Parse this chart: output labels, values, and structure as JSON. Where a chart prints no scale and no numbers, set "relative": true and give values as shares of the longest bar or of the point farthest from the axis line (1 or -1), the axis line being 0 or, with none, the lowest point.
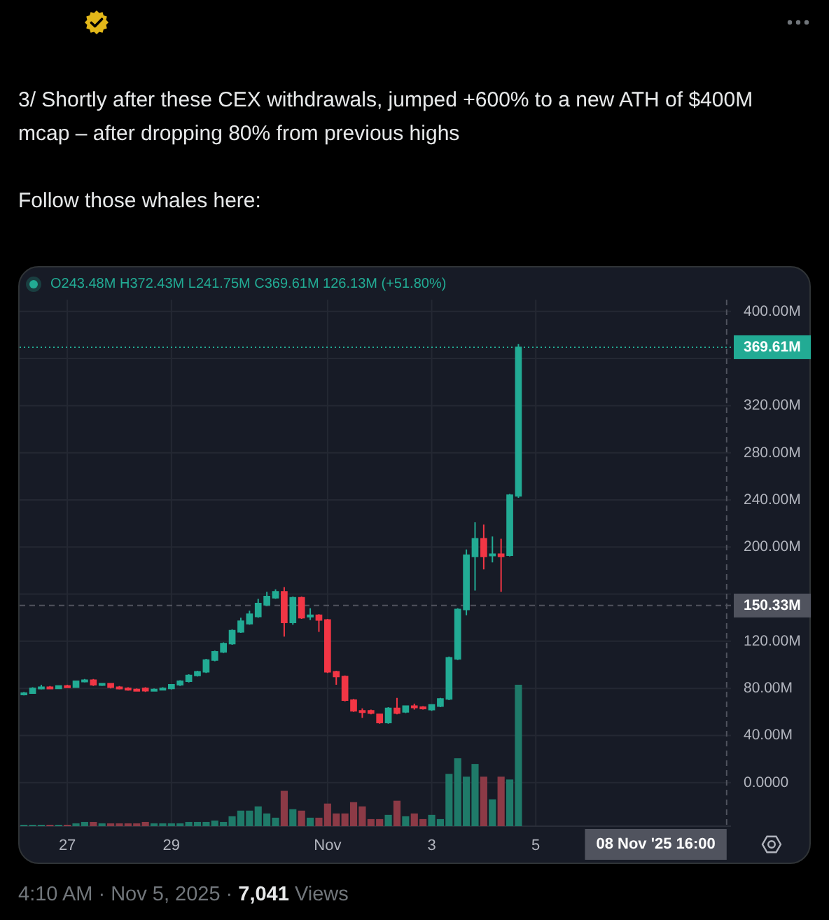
{
  "chart_data": [
    {
      "type": "candlestick",
      "title": "3/ Shortly after these CEX withdrawals, jumped +600% to a new ATH of $400M mcap – after dropping 80% from previous highs",
      "subtitle": "Follow those whales here:",
      "annotations": [
        "O243.48M H372.43M L241.75M C369.61M 126.13M (+51.80%)",
        "4:10 AM · Nov 5, 2025 ·",
        "7,041",
        "Views"
      ],
      "x": [
        "2025-10-26T04:00",
        "2025-10-26T08:00",
        "2025-10-26T12:00",
        "2025-10-26T16:00",
        "2025-10-26T20:00",
        "2025-10-27T00:00",
        "2025-10-27T04:00",
        "2025-10-27T08:00",
        "2025-10-27T12:00",
        "2025-10-27T16:00",
        "2025-10-27T20:00",
        "2025-10-28T00:00",
        "2025-10-28T04:00",
        "2025-10-28T08:00",
        "2025-10-28T12:00",
        "2025-10-28T16:00",
        "2025-10-28T20:00",
        "2025-10-29T00:00",
        "2025-10-29T04:00",
        "2025-10-29T08:00",
        "2025-10-29T12:00",
        "2025-10-29T16:00",
        "2025-10-29T20:00",
        "2025-10-30T00:00",
        "2025-10-30T04:00",
        "2025-10-30T08:00",
        "2025-10-30T12:00",
        "2025-10-30T16:00",
        "2025-10-30T20:00",
        "2025-10-31T00:00",
        "2025-10-31T04:00",
        "2025-10-31T08:00",
        "2025-10-31T12:00",
        "2025-10-31T16:00",
        "2025-10-31T20:00",
        "2025-11-01T00:00",
        "2025-11-01T04:00",
        "2025-11-01T08:00",
        "2025-11-01T12:00",
        "2025-11-01T16:00",
        "2025-11-01T20:00",
        "2025-11-02T00:00",
        "2025-11-02T04:00",
        "2025-11-02T08:00",
        "2025-11-02T12:00",
        "2025-11-02T16:00",
        "2025-11-02T20:00",
        "2025-11-03T00:00",
        "2025-11-03T04:00",
        "2025-11-03T08:00",
        "2025-11-03T12:00",
        "2025-11-03T16:00",
        "2025-11-03T20:00",
        "2025-11-04T00:00",
        "2025-11-04T04:00",
        "2025-11-04T08:00",
        "2025-11-04T12:00",
        "2025-11-04T16:00"
      ],
      "ohlc": [
        [
          75,
          77,
          74,
          76
        ],
        [
          76,
          81,
          76,
          80
        ],
        [
          80,
          83,
          79,
          81
        ],
        [
          81,
          82,
          80,
          80
        ],
        [
          80,
          82,
          80,
          82
        ],
        [
          82,
          83,
          81,
          81
        ],
        [
          81,
          86,
          81,
          86
        ],
        [
          86,
          88,
          85,
          87
        ],
        [
          87,
          88,
          82,
          83
        ],
        [
          83,
          84,
          82,
          84
        ],
        [
          84,
          84,
          80,
          81
        ],
        [
          81,
          82,
          79,
          80
        ],
        [
          80,
          81,
          78,
          79
        ],
        [
          79,
          80,
          78,
          78
        ],
        [
          80,
          81,
          77,
          78
        ],
        [
          78,
          80,
          78,
          79
        ],
        [
          79,
          81,
          79,
          80
        ],
        [
          80,
          83,
          79,
          83
        ],
        [
          83,
          87,
          82,
          86
        ],
        [
          86,
          92,
          85,
          91
        ],
        [
          91,
          95,
          90,
          94
        ],
        [
          94,
          105,
          93,
          104
        ],
        [
          104,
          112,
          103,
          111
        ],
        [
          111,
          119,
          110,
          118
        ],
        [
          118,
          130,
          117,
          129
        ],
        [
          128,
          140,
          127,
          137
        ],
        [
          135,
          146,
          134,
          143
        ],
        [
          141,
          156,
          140,
          152
        ],
        [
          151,
          162,
          150,
          158
        ],
        [
          157,
          164,
          156,
          162
        ],
        [
          162,
          166,
          124,
          136
        ],
        [
          136,
          158,
          134,
          157
        ],
        [
          157,
          158,
          139,
          140
        ],
        [
          141,
          148,
          138,
          142
        ],
        [
          142,
          143,
          128,
          138
        ],
        [
          138,
          139,
          93,
          94
        ],
        [
          94,
          95,
          83,
          90
        ],
        [
          90,
          91,
          69,
          70
        ],
        [
          70,
          71,
          60,
          61
        ],
        [
          61,
          63,
          55,
          60
        ],
        [
          61,
          62,
          58,
          59
        ],
        [
          58,
          58,
          50,
          51
        ],
        [
          51,
          64,
          50,
          63
        ],
        [
          63,
          72,
          58,
          59
        ],
        [
          60,
          65,
          59,
          65
        ],
        [
          65,
          67,
          62,
          64
        ],
        [
          64,
          65,
          62,
          63
        ],
        [
          62,
          66,
          61,
          66
        ],
        [
          65,
          72,
          64,
          71
        ],
        [
          71,
          107,
          70,
          106
        ],
        [
          105,
          148,
          104,
          147
        ],
        [
          147,
          198,
          142,
          193
        ],
        [
          192,
          221,
          163,
          207
        ],
        [
          207,
          219,
          181,
          192
        ],
        [
          193,
          209,
          187,
          194
        ],
        [
          194,
          207,
          162,
          192
        ],
        [
          193,
          245,
          192,
          244
        ],
        [
          243.48,
          372.43,
          241.75,
          369.61
        ]
      ],
      "colors": [
        "#22ab94",
        "#22ab94",
        "#22ab94",
        "#f23645",
        "#22ab94",
        "#f23645",
        "#22ab94",
        "#22ab94",
        "#f23645",
        "#22ab94",
        "#f23645",
        "#f23645",
        "#f23645",
        "#f23645",
        "#f23645",
        "#22ab94",
        "#22ab94",
        "#22ab94",
        "#22ab94",
        "#22ab94",
        "#22ab94",
        "#22ab94",
        "#22ab94",
        "#22ab94",
        "#22ab94",
        "#22ab94",
        "#22ab94",
        "#22ab94",
        "#22ab94",
        "#22ab94",
        "#f23645",
        "#22ab94",
        "#f23645",
        "#22ab94",
        "#f23645",
        "#f23645",
        "#f23645",
        "#f23645",
        "#f23645",
        "#f23645",
        "#f23645",
        "#f23645",
        "#22ab94",
        "#f23645",
        "#22ab94",
        "#f23645",
        "#f23645",
        "#22ab94",
        "#22ab94",
        "#22ab94",
        "#22ab94",
        "#22ab94",
        "#22ab94",
        "#f23645",
        "#22ab94",
        "#f23645",
        "#22ab94",
        "#22ab94"
      ],
      "xlim": [
        "2025-10-26T02:00",
        "2025-11-08T18:00"
      ],
      "xticks": [
        {
          "value": "2025-10-27",
          "label": "27"
        },
        {
          "value": "2025-10-29",
          "label": "29"
        },
        {
          "value": "2025-11-01",
          "label": "Nov"
        },
        {
          "value": "2025-11-03",
          "label": "3"
        },
        {
          "value": "2025-11-05",
          "label": "5"
        }
      ],
      "ylim": [
        -37,
        410
      ],
      "yticks": [
        {
          "value": 0,
          "label": "0.0000"
        },
        {
          "value": 40,
          "label": "40.00M"
        },
        {
          "value": 80,
          "label": "80.00M"
        },
        {
          "value": 120,
          "label": "120.00M"
        },
        {
          "value": 160,
          "label": null
        },
        {
          "value": 200,
          "label": "200.00M"
        },
        {
          "value": 240,
          "label": "240.00M"
        },
        {
          "value": 280,
          "label": "280.00M"
        },
        {
          "value": 320,
          "label": "320.00M"
        },
        {
          "value": 360,
          "label": null
        },
        {
          "value": 400,
          "label": "400.00M"
        }
      ],
      "grid": true,
      "ref_lines": [
        {
          "axis": "y",
          "value": 369.61,
          "label": "369.61M",
          "color": "#22ab94",
          "line_style": "dotted"
        },
        {
          "axis": "y",
          "value": 150.33,
          "label": "150.33M",
          "color": "#50535e",
          "line_style": "dashed"
        },
        {
          "axis": "x",
          "value": "2025-11-08T16:00",
          "label": "08 Nov '25 16:00",
          "color": "#50535e",
          "line_style": "dashed"
        }
      ]
    },
    {
      "type": "bar",
      "relative": true,
      "x": [
        "2025-10-26T04:00",
        "2025-10-26T08:00",
        "2025-10-26T12:00",
        "2025-10-26T16:00",
        "2025-10-26T20:00",
        "2025-10-27T00:00",
        "2025-10-27T04:00",
        "2025-10-27T08:00",
        "2025-10-27T12:00",
        "2025-10-27T16:00",
        "2025-10-27T20:00",
        "2025-10-28T00:00",
        "2025-10-28T04:00",
        "2025-10-28T08:00",
        "2025-10-28T12:00",
        "2025-10-28T16:00",
        "2025-10-28T20:00",
        "2025-10-29T00:00",
        "2025-10-29T04:00",
        "2025-10-29T08:00",
        "2025-10-29T12:00",
        "2025-10-29T16:00",
        "2025-10-29T20:00",
        "2025-10-30T00:00",
        "2025-10-30T04:00",
        "2025-10-30T08:00",
        "2025-10-30T12:00",
        "2025-10-30T16:00",
        "2025-10-30T20:00",
        "2025-10-31T00:00",
        "2025-10-31T04:00",
        "2025-10-31T08:00",
        "2025-10-31T12:00",
        "2025-10-31T16:00",
        "2025-10-31T20:00",
        "2025-11-01T00:00",
        "2025-11-01T04:00",
        "2025-11-01T08:00",
        "2025-11-01T12:00",
        "2025-11-01T16:00",
        "2025-11-01T20:00",
        "2025-11-02T00:00",
        "2025-11-02T04:00",
        "2025-11-02T08:00",
        "2025-11-02T12:00",
        "2025-11-02T16:00",
        "2025-11-02T20:00",
        "2025-11-03T00:00",
        "2025-11-03T04:00",
        "2025-11-03T08:00",
        "2025-11-03T12:00",
        "2025-11-03T16:00",
        "2025-11-03T20:00",
        "2025-11-04T00:00",
        "2025-11-04T04:00",
        "2025-11-04T08:00",
        "2025-11-04T12:00",
        "2025-11-04T16:00"
      ],
      "xlim": [
        "2025-10-26T02:00",
        "2025-11-08T18:00"
      ],
      "values": [
        0.01,
        0.01,
        0.01,
        0.01,
        0.01,
        0.01,
        0.02,
        0.03,
        0.03,
        0.02,
        0.02,
        0.02,
        0.02,
        0.02,
        0.03,
        0.02,
        0.02,
        0.02,
        0.02,
        0.03,
        0.03,
        0.03,
        0.04,
        0.03,
        0.07,
        0.11,
        0.11,
        0.14,
        0.09,
        0.06,
        0.25,
        0.12,
        0.11,
        0.06,
        0.06,
        0.16,
        0.09,
        0.09,
        0.17,
        0.14,
        0.05,
        0.05,
        0.08,
        0.18,
        0.07,
        0.09,
        0.05,
        0.08,
        0.05,
        0.37,
        0.48,
        0.35,
        0.44,
        0.35,
        0.19,
        0.35,
        0.33,
        1
      ],
      "colors": [
        "#1f7a69",
        "#1f7a69",
        "#1f7a69",
        "#8c3a46",
        "#1f7a69",
        "#8c3a46",
        "#1f7a69",
        "#1f7a69",
        "#8c3a46",
        "#1f7a69",
        "#8c3a46",
        "#8c3a46",
        "#8c3a46",
        "#8c3a46",
        "#8c3a46",
        "#1f7a69",
        "#1f7a69",
        "#1f7a69",
        "#1f7a69",
        "#1f7a69",
        "#1f7a69",
        "#1f7a69",
        "#1f7a69",
        "#1f7a69",
        "#1f7a69",
        "#1f7a69",
        "#1f7a69",
        "#1f7a69",
        "#1f7a69",
        "#1f7a69",
        "#8c3a46",
        "#1f7a69",
        "#8c3a46",
        "#1f7a69",
        "#8c3a46",
        "#8c3a46",
        "#8c3a46",
        "#8c3a46",
        "#8c3a46",
        "#8c3a46",
        "#8c3a46",
        "#8c3a46",
        "#1f7a69",
        "#8c3a46",
        "#1f7a69",
        "#8c3a46",
        "#8c3a46",
        "#1f7a69",
        "#1f7a69",
        "#1f7a69",
        "#1f7a69",
        "#1f7a69",
        "#1f7a69",
        "#8c3a46",
        "#1f7a69",
        "#8c3a46",
        "#1f7a69",
        "#1f7a69"
      ]
    }
  ]
}
